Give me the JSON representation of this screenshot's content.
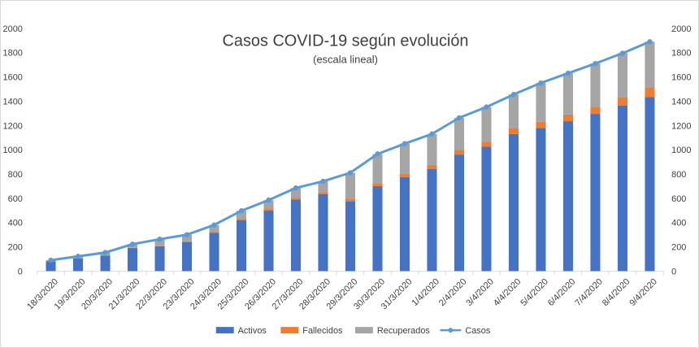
{
  "chart_data": {
    "type": "bar",
    "stacked": true,
    "title": "Casos COVID-19 según evolución",
    "subtitle": "(escala lineal)",
    "xlabel": "",
    "ylabel": "",
    "ylim": [
      0,
      2000
    ],
    "yticks": [
      0,
      200,
      400,
      600,
      800,
      1000,
      1200,
      1400,
      1600,
      1800,
      2000
    ],
    "secondary_yticks": [
      0,
      200,
      400,
      600,
      800,
      1000,
      1200,
      1400,
      1600,
      1800,
      2000
    ],
    "grid": false,
    "legend_position": "bottom",
    "categories": [
      "18/3/2020",
      "19/3/2020",
      "20/3/2020",
      "21/3/2020",
      "22/3/2020",
      "23/3/2020",
      "24/3/2020",
      "25/3/2020",
      "26/3/2020",
      "27/3/2020",
      "28/3/2020",
      "29/3/2020",
      "30/3/2020",
      "31/3/2020",
      "1/4/2020",
      "2/4/2020",
      "3/4/2020",
      "4/4/2020",
      "5/4/2020",
      "6/4/2020",
      "7/4/2020",
      "8/4/2020",
      "9/4/2020"
    ],
    "series": [
      {
        "name": "Activos",
        "type": "bar",
        "color": "#4472c4",
        "values": [
          80,
          105,
          128,
          190,
          205,
          240,
          315,
          420,
          500,
          590,
          635,
          575,
          700,
          775,
          840,
          960,
          1025,
          1130,
          1180,
          1235,
          1295,
          1365,
          1435
        ]
      },
      {
        "name": "Fallecidos",
        "type": "bar",
        "color": "#ed7d31",
        "values": [
          0,
          0,
          0,
          2,
          3,
          5,
          10,
          12,
          15,
          15,
          15,
          20,
          25,
          30,
          35,
          38,
          42,
          45,
          50,
          55,
          60,
          65,
          80
        ]
      },
      {
        "name": "Recuperados",
        "type": "bar",
        "color": "#a5a5a5",
        "values": [
          10,
          17,
          25,
          30,
          55,
          55,
          55,
          65,
          70,
          80,
          90,
          215,
          240,
          245,
          255,
          265,
          285,
          280,
          320,
          340,
          355,
          365,
          375
        ]
      },
      {
        "name": "Casos",
        "type": "line",
        "color": "#5b9bd5",
        "values": [
          90,
          122,
          153,
          222,
          263,
          300,
          380,
          497,
          585,
          685,
          740,
          810,
          965,
          1050,
          1130,
          1263,
          1352,
          1455,
          1550,
          1630,
          1710,
          1795,
          1890
        ]
      }
    ]
  }
}
